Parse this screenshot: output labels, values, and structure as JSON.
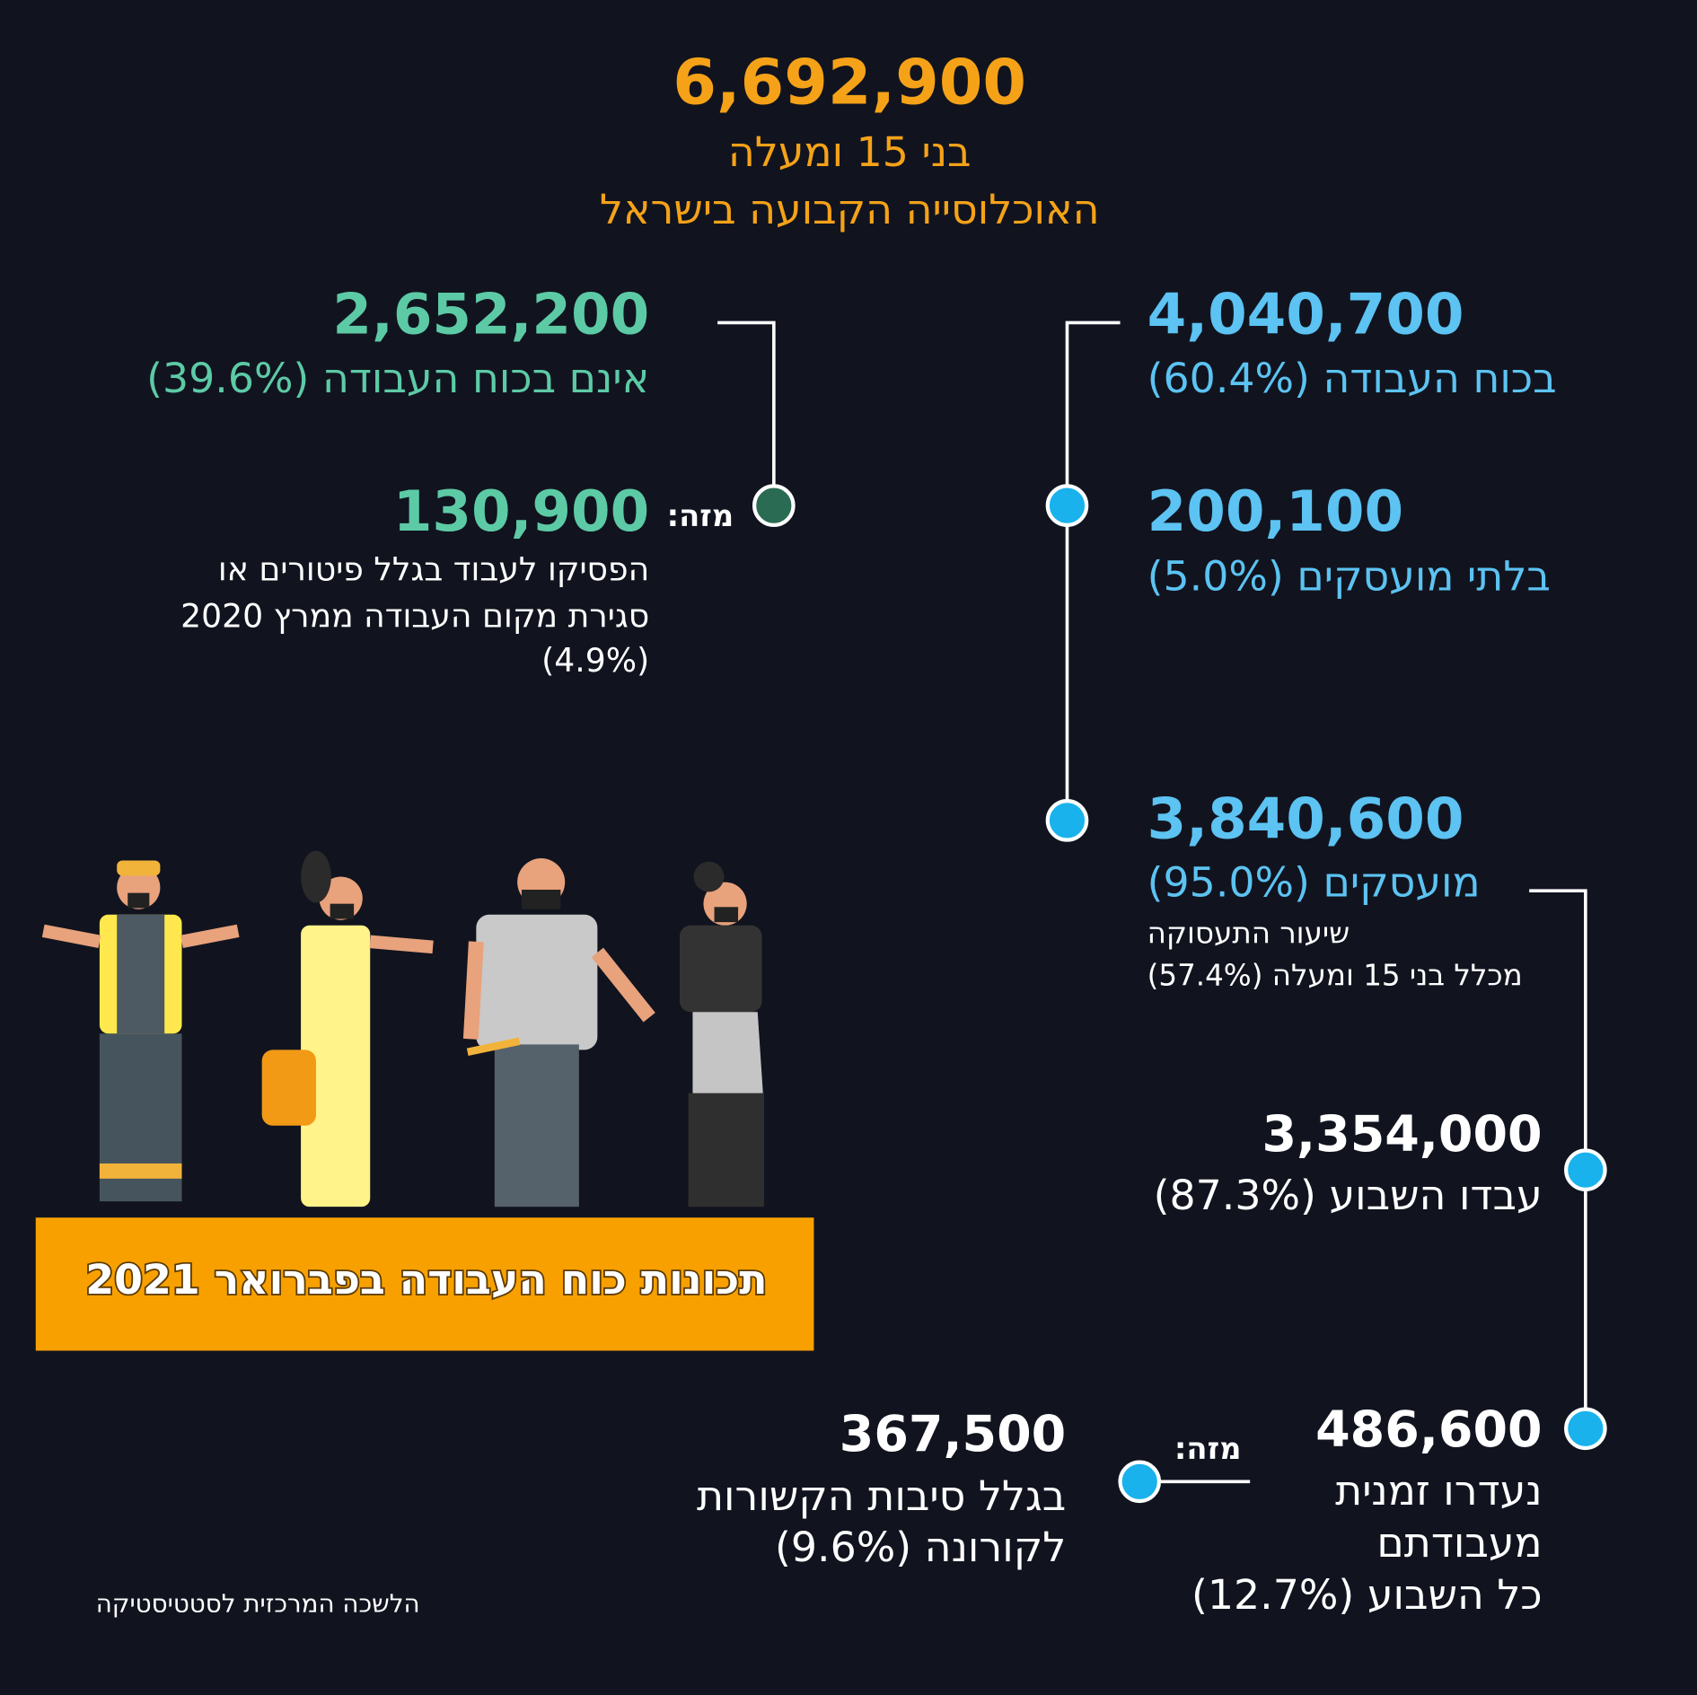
{
  "header": {
    "total": "6,692,900",
    "line1": "בני 15 ומעלה",
    "line2": "האוכלוסייה הקבועה בישראל"
  },
  "not_in_labor_force": {
    "value": "2,652,200",
    "label": "אינם בכוח העבודה (39.6%)"
  },
  "of_which_label": "מזה:",
  "stopped_working": {
    "value": "130,900",
    "lines": [
      "הפסיקו לעבוד בגלל פיטורים או",
      "סגירת מקום העבודה ממרץ 2020",
      "(4.9%)"
    ]
  },
  "in_labor_force": {
    "value": "4,040,700",
    "label": "בכוח העבודה (60.4%)"
  },
  "unemployed": {
    "value": "200,100",
    "label": "בלתי מועסקים (5.0%)"
  },
  "employed": {
    "value": "3,840,600",
    "label": "מועסקים (95.0%)",
    "lines": [
      "שיעור התעסוקה",
      "מכלל בני 15 ומעלה (57.4%)"
    ]
  },
  "worked_this_week": {
    "value": "3,354,000",
    "label": "עבדו השבוע (87.3%)"
  },
  "temporarily_absent": {
    "value": "486,600",
    "lines": [
      "נעדרו זמנית",
      "מעבודתם",
      "כל השבוע (12.7%)"
    ]
  },
  "corona_reasons": {
    "value": "367,500",
    "lines": [
      "בגלל סיבות הקשורות",
      "לקורונה (9.6%)"
    ]
  },
  "banner": "תכונות כוח העבודה בפברואר 2021",
  "source": "הלשכה המרכזית לסטטיסטיקה"
}
